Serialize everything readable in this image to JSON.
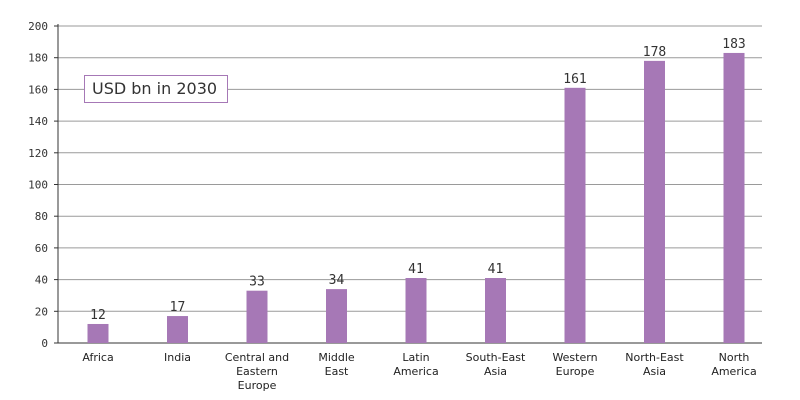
{
  "chart_data": {
    "type": "bar",
    "annotation": "USD bn in 2030",
    "categories": [
      [
        "Africa"
      ],
      [
        "India"
      ],
      [
        "Central and",
        "Eastern",
        "Europe"
      ],
      [
        "Middle",
        "East"
      ],
      [
        "Latin",
        "America"
      ],
      [
        "South-East",
        "Asia"
      ],
      [
        "Western",
        "Europe"
      ],
      [
        "North-East",
        "Asia"
      ],
      [
        "North",
        "America"
      ]
    ],
    "values": [
      12,
      17,
      33,
      34,
      41,
      41,
      161,
      178,
      183
    ],
    "data_labels": [
      "12",
      "17",
      "33",
      "34",
      "41",
      "41",
      "161",
      "178",
      "183"
    ],
    "yticks": [
      "0",
      "20",
      "40",
      "60",
      "80",
      "100",
      "120",
      "140",
      "160",
      "180",
      "200"
    ],
    "ylim": [
      0,
      200
    ],
    "grid": true,
    "colors": {
      "bar": "#a678b6",
      "grid": "#9a9a9a",
      "axis": "#333333"
    }
  }
}
